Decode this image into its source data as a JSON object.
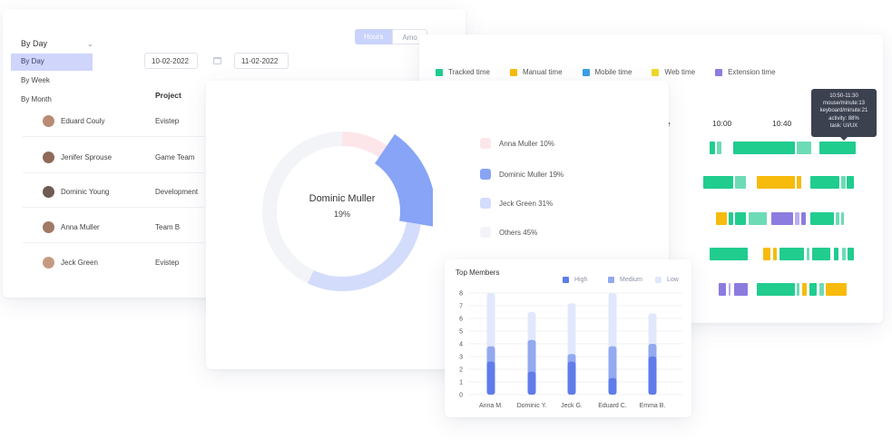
{
  "table_card": {
    "dropdown_value": "By Day",
    "dropdown_options": [
      "By Day",
      "By Week",
      "By Month"
    ],
    "date_from": "10-02-2022",
    "date_to": "11-02-2022",
    "toggle_on": "Hours",
    "toggle_off": "Amo",
    "project_header": "Project",
    "rows": [
      {
        "name": "Eduard Couly",
        "project": "Evistep",
        "avatar_color": "#b98a74"
      },
      {
        "name": "Jenifer Sprouse",
        "project": "Game Team",
        "avatar_color": "#8f6a5a"
      },
      {
        "name": "Dominic Young",
        "project": "Development",
        "avatar_color": "#6f5b52"
      },
      {
        "name": "Anna Muller",
        "project": "Team B",
        "avatar_color": "#a07a66"
      },
      {
        "name": "Jeck Green",
        "project": "Evistep",
        "avatar_color": "#c49b82"
      }
    ]
  },
  "timeline_card": {
    "legend": [
      {
        "label": "Tracked time",
        "color": "#21cc8f"
      },
      {
        "label": "Manual time",
        "color": "#f7bb0e"
      },
      {
        "label": "Mobile time",
        "color": "#3a9ee6"
      },
      {
        "label": "Web time",
        "color": "#f0d82c"
      },
      {
        "label": "Extension time",
        "color": "#8c7cdf"
      }
    ],
    "time_labels": [
      "e",
      "10:00",
      "10:40"
    ],
    "tooltip": [
      "10:50-11:30",
      "mouse/minute:13",
      "keyboard/minute:21",
      "activity: 88%",
      "task: UI/UX"
    ]
  },
  "donut_card": {
    "center_name": "Dominic Muller",
    "center_pct": "19%",
    "slices": [
      {
        "label": "Anna Muller 10%",
        "value": 10,
        "color": "#fde6ea"
      },
      {
        "label": "Dominic Muller 19%",
        "value": 19,
        "color": "#88a4f7"
      },
      {
        "label": "Jeck Green 31%",
        "value": 31,
        "color": "#d3dcfb"
      },
      {
        "label": "Others 45%",
        "value": 45,
        "color": "#f3f4f8"
      }
    ]
  },
  "members_card": {
    "title": "Top Members",
    "legend": [
      {
        "label": "High",
        "color": "#5f7cea"
      },
      {
        "label": "Medium",
        "color": "#93a9f0"
      },
      {
        "label": "Low",
        "color": "#e2e8fb"
      }
    ],
    "chart_data": {
      "type": "bar",
      "stacked": true,
      "title": "Top Members",
      "categories": [
        "Anna M.",
        "Dominic Y.",
        "Jeck G.",
        "Eduard C.",
        "Emma B."
      ],
      "ylim": [
        0,
        8
      ],
      "yticks": [
        0,
        1,
        2,
        3,
        4,
        5,
        6,
        7,
        8
      ],
      "grid": true,
      "legend_position": "top-right",
      "series": [
        {
          "name": "High",
          "values": [
            2.6,
            1.8,
            2.6,
            1.3,
            3.0
          ]
        },
        {
          "name": "Medium",
          "values": [
            1.2,
            2.5,
            0.6,
            2.5,
            1.0
          ]
        },
        {
          "name": "Low",
          "values": [
            4.2,
            2.2,
            4.0,
            4.2,
            2.4
          ]
        }
      ]
    }
  }
}
